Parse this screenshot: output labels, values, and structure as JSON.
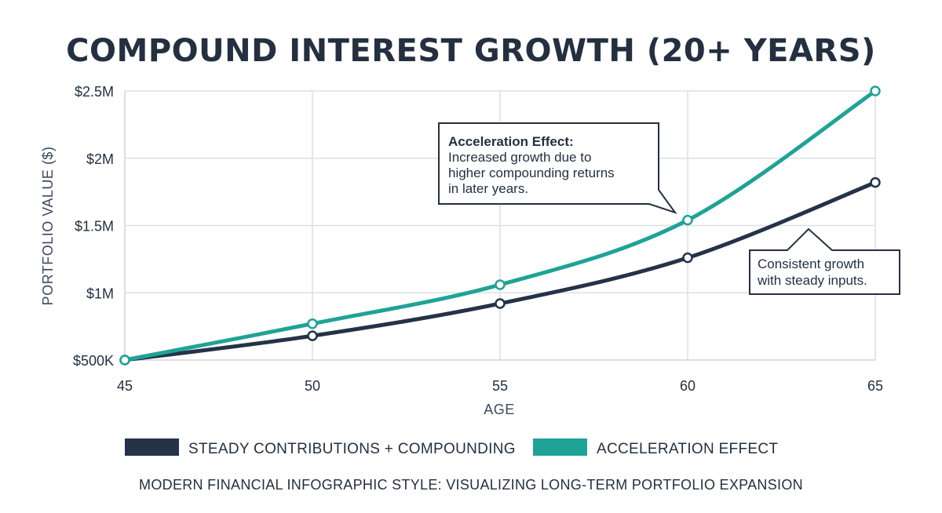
{
  "chart_data": {
    "type": "line",
    "title": "COMPOUND INTEREST GROWTH (20+ YEARS)",
    "subtitle": "MODERN FINANCIAL INFOGRAPHIC STYLE: VISUALIZING LONG-TERM PORTFOLIO EXPANSION",
    "xlabel": "AGE",
    "ylabel": "PORTFOLIO VALUE ($)",
    "x": [
      45,
      50,
      55,
      60,
      65
    ],
    "xlim": [
      45,
      65
    ],
    "ylim": [
      500000,
      2500000
    ],
    "x_ticks": [
      "45",
      "50",
      "55",
      "60",
      "65"
    ],
    "y_ticks": [
      {
        "value": 500000,
        "label": "$500K"
      },
      {
        "value": 1000000,
        "label": "$1M"
      },
      {
        "value": 1500000,
        "label": "$1.5M"
      },
      {
        "value": 2000000,
        "label": "$2M"
      },
      {
        "value": 2500000,
        "label": "$2.5M"
      }
    ],
    "grid": true,
    "legend_position": "bottom",
    "series": [
      {
        "name": "STEADY CONTRIBUTIONS + COMPOUNDING",
        "color": "#243347",
        "values": [
          500000,
          680000,
          920000,
          1260000,
          1820000
        ]
      },
      {
        "name": "ACCELERATION EFFECT",
        "color": "#1fa396",
        "values": [
          500000,
          770000,
          1060000,
          1540000,
          2500000
        ]
      }
    ],
    "annotations": [
      {
        "title": "Acceleration Effect:",
        "lines": [
          "Increased growth due to",
          "higher compounding returns",
          "in later years."
        ],
        "points_to": {
          "x": 60,
          "y": 1540000
        }
      },
      {
        "title": "",
        "lines": [
          "Consistent growth",
          "with steady inputs."
        ],
        "points_to": {
          "x": 62,
          "y": 1500000
        }
      }
    ]
  }
}
